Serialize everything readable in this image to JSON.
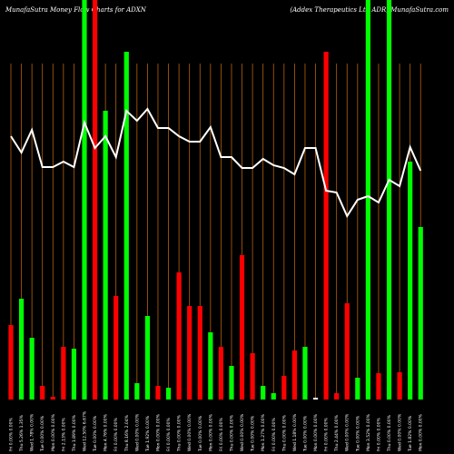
{
  "chart_data": {
    "type": "bar",
    "title": "MunafaSutra  Money Flow  Charts for ADXN",
    "subtitle": "(Addex Therapeutics Ltd ADR) MunafaSutra.com",
    "categories": [
      "Fri 0.00% 0.00%",
      "Thu 5.26% 1.35%",
      "Wed 1.78% 0.00%",
      "Tue 0.00% 0.00%",
      "Mon 0.00% 0.00%",
      "Fri 2.13% 0.00%",
      "Thu 1.89% 0.00%",
      "Wed 12.50% 6.67%",
      "Tue 0.00% 0.00%",
      "Mon 4.76% 0.00%",
      "Fri 0.00% 0.00%",
      "Thu 8.16% 2.04%",
      "Wed 0.00% 0.00%",
      "Tue 1.92% 0.00%",
      "Mon 0.00% 0.00%",
      "Fri 0.00% 0.00%",
      "Thu 0.00% 0.00%",
      "Wed 0.00% 0.00%",
      "Tue 0.00% 0.00%",
      "Mon 0.00% 0.00%",
      "Fri 0.00% 0.00%",
      "Thu 0.00% 0.00%",
      "Wed 0.00% 0.00%",
      "Tue 0.00% 0.00%",
      "Mon 1.27% 0.00%",
      "Fri 0.00% 0.00%",
      "Thu 0.00% 0.00%",
      "Wed 1.18% 0.00%",
      "Tue 0.00% 0.00%",
      "Mon 0.00% 0.00%",
      "Fri 0.00% 0.00%",
      "Thu 2.44% 0.00%",
      "Wed 0.00% 0.00%",
      "Tue 0.00% 0.00%",
      "Mon 3.52% 0.00%",
      "Fri 0.00% 0.00%",
      "Thu 0.00% 0.00%",
      "Wed 0.00% 0.00%",
      "Tue 1.82% 0.00%",
      "Mon 0.00% 0.00%"
    ],
    "values": [
      82,
      111,
      68,
      15,
      3,
      58,
      56,
      440,
      440,
      318,
      114,
      383,
      18,
      92,
      15,
      13,
      140,
      103,
      103,
      74,
      58,
      37,
      159,
      51,
      15,
      7,
      26,
      54,
      58,
      2,
      383,
      7,
      106,
      24,
      440,
      29,
      440,
      30,
      262,
      190
    ],
    "colors": [
      "#ff0000",
      "#00ff00",
      "#00ff00",
      "#ff0000",
      "#ff0000",
      "#ff0000",
      "#00ff00",
      "#00ff00",
      "#ff0000",
      "#00ff00",
      "#ff0000",
      "#00ff00",
      "#00ff00",
      "#00ff00",
      "#ff0000",
      "#00ff00",
      "#ff0000",
      "#ff0000",
      "#ff0000",
      "#00ff00",
      "#ff0000",
      "#00ff00",
      "#ff0000",
      "#ff0000",
      "#00ff00",
      "#00ff00",
      "#ff0000",
      "#ff0000",
      "#00ff00",
      "#ffffff",
      "#ff0000",
      "#ff0000",
      "#ff0000",
      "#00ff00",
      "#00ff00",
      "#ff0000",
      "#00ff00",
      "#ff0000",
      "#00ff00",
      "#00ff00"
    ],
    "line": {
      "color": "#ffffff",
      "values": [
        290,
        272,
        297,
        256,
        256,
        262,
        256,
        305,
        277,
        290,
        267,
        318,
        307,
        320,
        299,
        299,
        290,
        284,
        284,
        300,
        267,
        267,
        255,
        255,
        265,
        258,
        255,
        248,
        277,
        277,
        230,
        228,
        202,
        220,
        224,
        217,
        242,
        235,
        278,
        252
      ]
    },
    "ylim": [
      0,
      440
    ],
    "grid": true,
    "grid_color": "#b8600b"
  }
}
